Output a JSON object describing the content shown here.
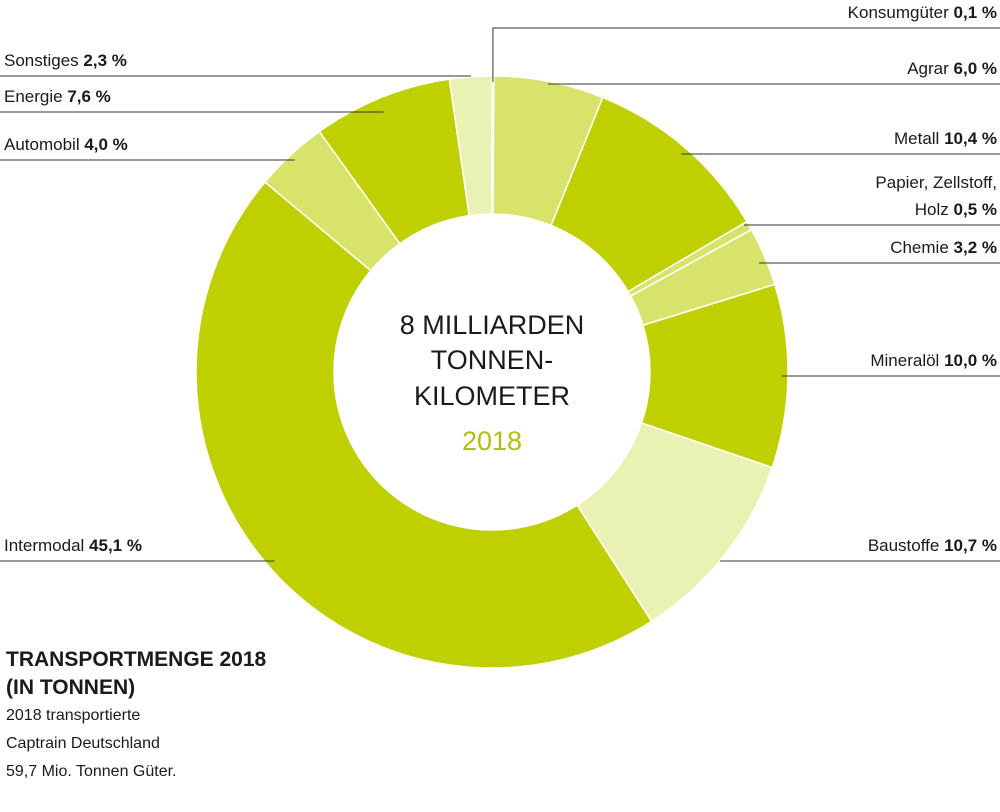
{
  "chart_data": {
    "type": "pie",
    "center_text": [
      "8 MILLIARDEN",
      "TONNEN-",
      "KILOMETER"
    ],
    "center_year": "2018",
    "slices": [
      {
        "label": "Konsumgüter",
        "display": "0,1 %",
        "value": 0.1,
        "color": "#bfcf00"
      },
      {
        "label": "Agrar",
        "display": "6,0 %",
        "value": 6.0,
        "color": "#d8e36b"
      },
      {
        "label": "Metall",
        "display": "10,4 %",
        "value": 10.4,
        "color": "#bfcf00"
      },
      {
        "label": "Papier, Zellstoff, Holz",
        "display": "0,5 %",
        "value": 0.5,
        "color": "#d8e36b"
      },
      {
        "label": "Chemie",
        "display": "3,2 %",
        "value": 3.2,
        "color": "#d8e36b"
      },
      {
        "label": "Mineralöl",
        "display": "10,0 %",
        "value": 10.0,
        "color": "#bfcf00"
      },
      {
        "label": "Baustoffe",
        "display": "10,7 %",
        "value": 10.7,
        "color": "#e9f1b3"
      },
      {
        "label": "Intermodal",
        "display": "45,1 %",
        "value": 45.1,
        "color": "#bfcf00"
      },
      {
        "label": "Automobil",
        "display": "4,0 %",
        "value": 4.0,
        "color": "#d8e36b"
      },
      {
        "label": "Energie",
        "display": "7,6 %",
        "value": 7.6,
        "color": "#bfcf00"
      },
      {
        "label": "Sonstiges",
        "display": "2,3 %",
        "value": 2.3,
        "color": "#e9f1b3"
      }
    ],
    "info": {
      "title_lines": [
        "TRANSPORTMENGE 2018",
        "(IN TONNEN)"
      ],
      "text_lines": [
        "2018 transportierte",
        "Captrain Deutschland",
        "59,7 Mio. Tonnen Güter."
      ]
    },
    "colors": {
      "accent": "#bfcf00",
      "year": "#aebf10",
      "text": "#1a1a1a"
    }
  }
}
